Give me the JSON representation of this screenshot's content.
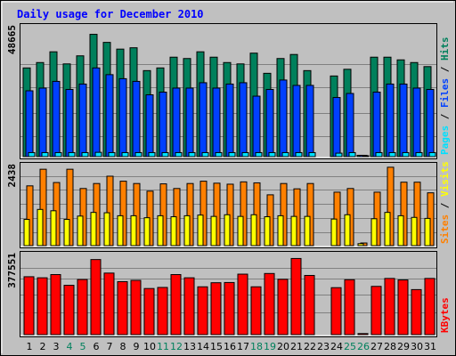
{
  "title": "Daily usage for December 2010",
  "colors": {
    "hits": "#00805c",
    "files": "#0040ff",
    "pages": "#00e0ff",
    "visits": "#ffff00",
    "sites": "#ff8000",
    "kbytes": "#ff0000",
    "title": "#0000ff",
    "weekday": "#000000",
    "weekend": "#00805c",
    "background": "#c0c0c0",
    "panel": "#c0c0c0"
  },
  "chart_data": [
    {
      "type": "bar",
      "panel": "hits-files-pages",
      "ymax": 48665,
      "ymax_label": "48665",
      "legend": [
        "Pages",
        "Files",
        "Hits"
      ],
      "categories": [
        "1",
        "2",
        "3",
        "4",
        "5",
        "6",
        "7",
        "8",
        "9",
        "10",
        "11",
        "12",
        "13",
        "14",
        "15",
        "16",
        "17",
        "18",
        "19",
        "20",
        "21",
        "22",
        "23",
        "24",
        "25",
        "26",
        "27",
        "28",
        "29",
        "30",
        "31"
      ],
      "series": [
        {
          "name": "Hits",
          "values": [
            33000,
            35000,
            39000,
            34500,
            37500,
            45500,
            42500,
            40000,
            40500,
            32000,
            33000,
            37000,
            36500,
            39000,
            37000,
            35000,
            34500,
            38500,
            31000,
            36500,
            38000,
            32000,
            null,
            30000,
            32500,
            500,
            37000,
            37000,
            36000,
            35000,
            33500
          ]
        },
        {
          "name": "Files",
          "values": [
            24500,
            25500,
            28000,
            25000,
            27000,
            33000,
            30500,
            29000,
            28000,
            23000,
            24000,
            25500,
            25500,
            27500,
            25500,
            27000,
            27500,
            22500,
            25000,
            28500,
            26500,
            26500,
            null,
            22000,
            23500,
            500,
            24000,
            27000,
            27000,
            25500,
            25000
          ]
        },
        {
          "name": "Pages",
          "values": [
            1500,
            1500,
            1500,
            1500,
            1500,
            1600,
            1500,
            1500,
            1500,
            1500,
            1500,
            1500,
            1500,
            1500,
            1500,
            1500,
            1500,
            1500,
            1500,
            1500,
            1500,
            1500,
            null,
            1300,
            1500,
            100,
            1500,
            1500,
            1500,
            1500,
            1500
          ]
        }
      ]
    },
    {
      "type": "bar",
      "panel": "visits-sites",
      "ymax": 2438,
      "ymax_label": "2438",
      "legend": [
        "Sites",
        "Visits"
      ],
      "categories": [
        "1",
        "2",
        "3",
        "4",
        "5",
        "6",
        "7",
        "8",
        "9",
        "10",
        "11",
        "12",
        "13",
        "14",
        "15",
        "16",
        "17",
        "18",
        "19",
        "20",
        "21",
        "22",
        "23",
        "24",
        "25",
        "26",
        "27",
        "28",
        "29",
        "30",
        "31"
      ],
      "series": [
        {
          "name": "Sites",
          "values": [
            1800,
            2300,
            1900,
            2300,
            1720,
            1870,
            2090,
            1940,
            1870,
            1640,
            1860,
            1720,
            1870,
            1940,
            1880,
            1850,
            1920,
            1890,
            1530,
            1870,
            1710,
            1870,
            null,
            1610,
            1720,
            80,
            1610,
            2360,
            1910,
            1910,
            1590
          ]
        },
        {
          "name": "Visits",
          "values": [
            790,
            1090,
            1050,
            790,
            890,
            1000,
            990,
            900,
            900,
            840,
            900,
            870,
            900,
            920,
            880,
            930,
            880,
            930,
            870,
            900,
            880,
            880,
            null,
            800,
            930,
            60,
            810,
            1000,
            900,
            850,
            820
          ]
        }
      ]
    },
    {
      "type": "bar",
      "panel": "kbytes",
      "ymax": 377551,
      "ymax_label": "377551",
      "legend": [
        "KBytes"
      ],
      "categories": [
        "1",
        "2",
        "3",
        "4",
        "5",
        "6",
        "7",
        "8",
        "9",
        "10",
        "11",
        "12",
        "13",
        "14",
        "15",
        "16",
        "17",
        "18",
        "19",
        "20",
        "21",
        "22",
        "23",
        "24",
        "25",
        "26",
        "27",
        "28",
        "29",
        "30",
        "31"
      ],
      "series": [
        {
          "name": "KBytes",
          "values": [
            270000,
            265000,
            280000,
            230000,
            257000,
            350000,
            287000,
            247000,
            253000,
            215000,
            220000,
            280000,
            265000,
            223000,
            242000,
            243000,
            282000,
            223000,
            285000,
            258000,
            355000,
            276000,
            null,
            219000,
            256000,
            5000,
            225000,
            262000,
            255000,
            210000,
            262000
          ]
        }
      ]
    }
  ],
  "x_axis_labels": [
    {
      "d": "1",
      "weekend": false
    },
    {
      "d": "2",
      "weekend": false
    },
    {
      "d": "3",
      "weekend": false
    },
    {
      "d": "4",
      "weekend": true
    },
    {
      "d": "5",
      "weekend": true
    },
    {
      "d": "6",
      "weekend": false
    },
    {
      "d": "7",
      "weekend": false
    },
    {
      "d": "8",
      "weekend": false
    },
    {
      "d": "9",
      "weekend": false
    },
    {
      "d": "10",
      "weekend": false
    },
    {
      "d": "11",
      "weekend": true
    },
    {
      "d": "12",
      "weekend": true
    },
    {
      "d": "13",
      "weekend": false
    },
    {
      "d": "14",
      "weekend": false
    },
    {
      "d": "15",
      "weekend": false
    },
    {
      "d": "16",
      "weekend": false
    },
    {
      "d": "17",
      "weekend": false
    },
    {
      "d": "18",
      "weekend": true
    },
    {
      "d": "19",
      "weekend": true
    },
    {
      "d": "20",
      "weekend": false
    },
    {
      "d": "21",
      "weekend": false
    },
    {
      "d": "22",
      "weekend": false
    },
    {
      "d": "23",
      "weekend": false
    },
    {
      "d": "24",
      "weekend": false
    },
    {
      "d": "25",
      "weekend": true
    },
    {
      "d": "26",
      "weekend": true
    },
    {
      "d": "27",
      "weekend": false
    },
    {
      "d": "28",
      "weekend": false
    },
    {
      "d": "29",
      "weekend": false
    },
    {
      "d": "30",
      "weekend": false
    },
    {
      "d": "31",
      "weekend": false
    }
  ]
}
